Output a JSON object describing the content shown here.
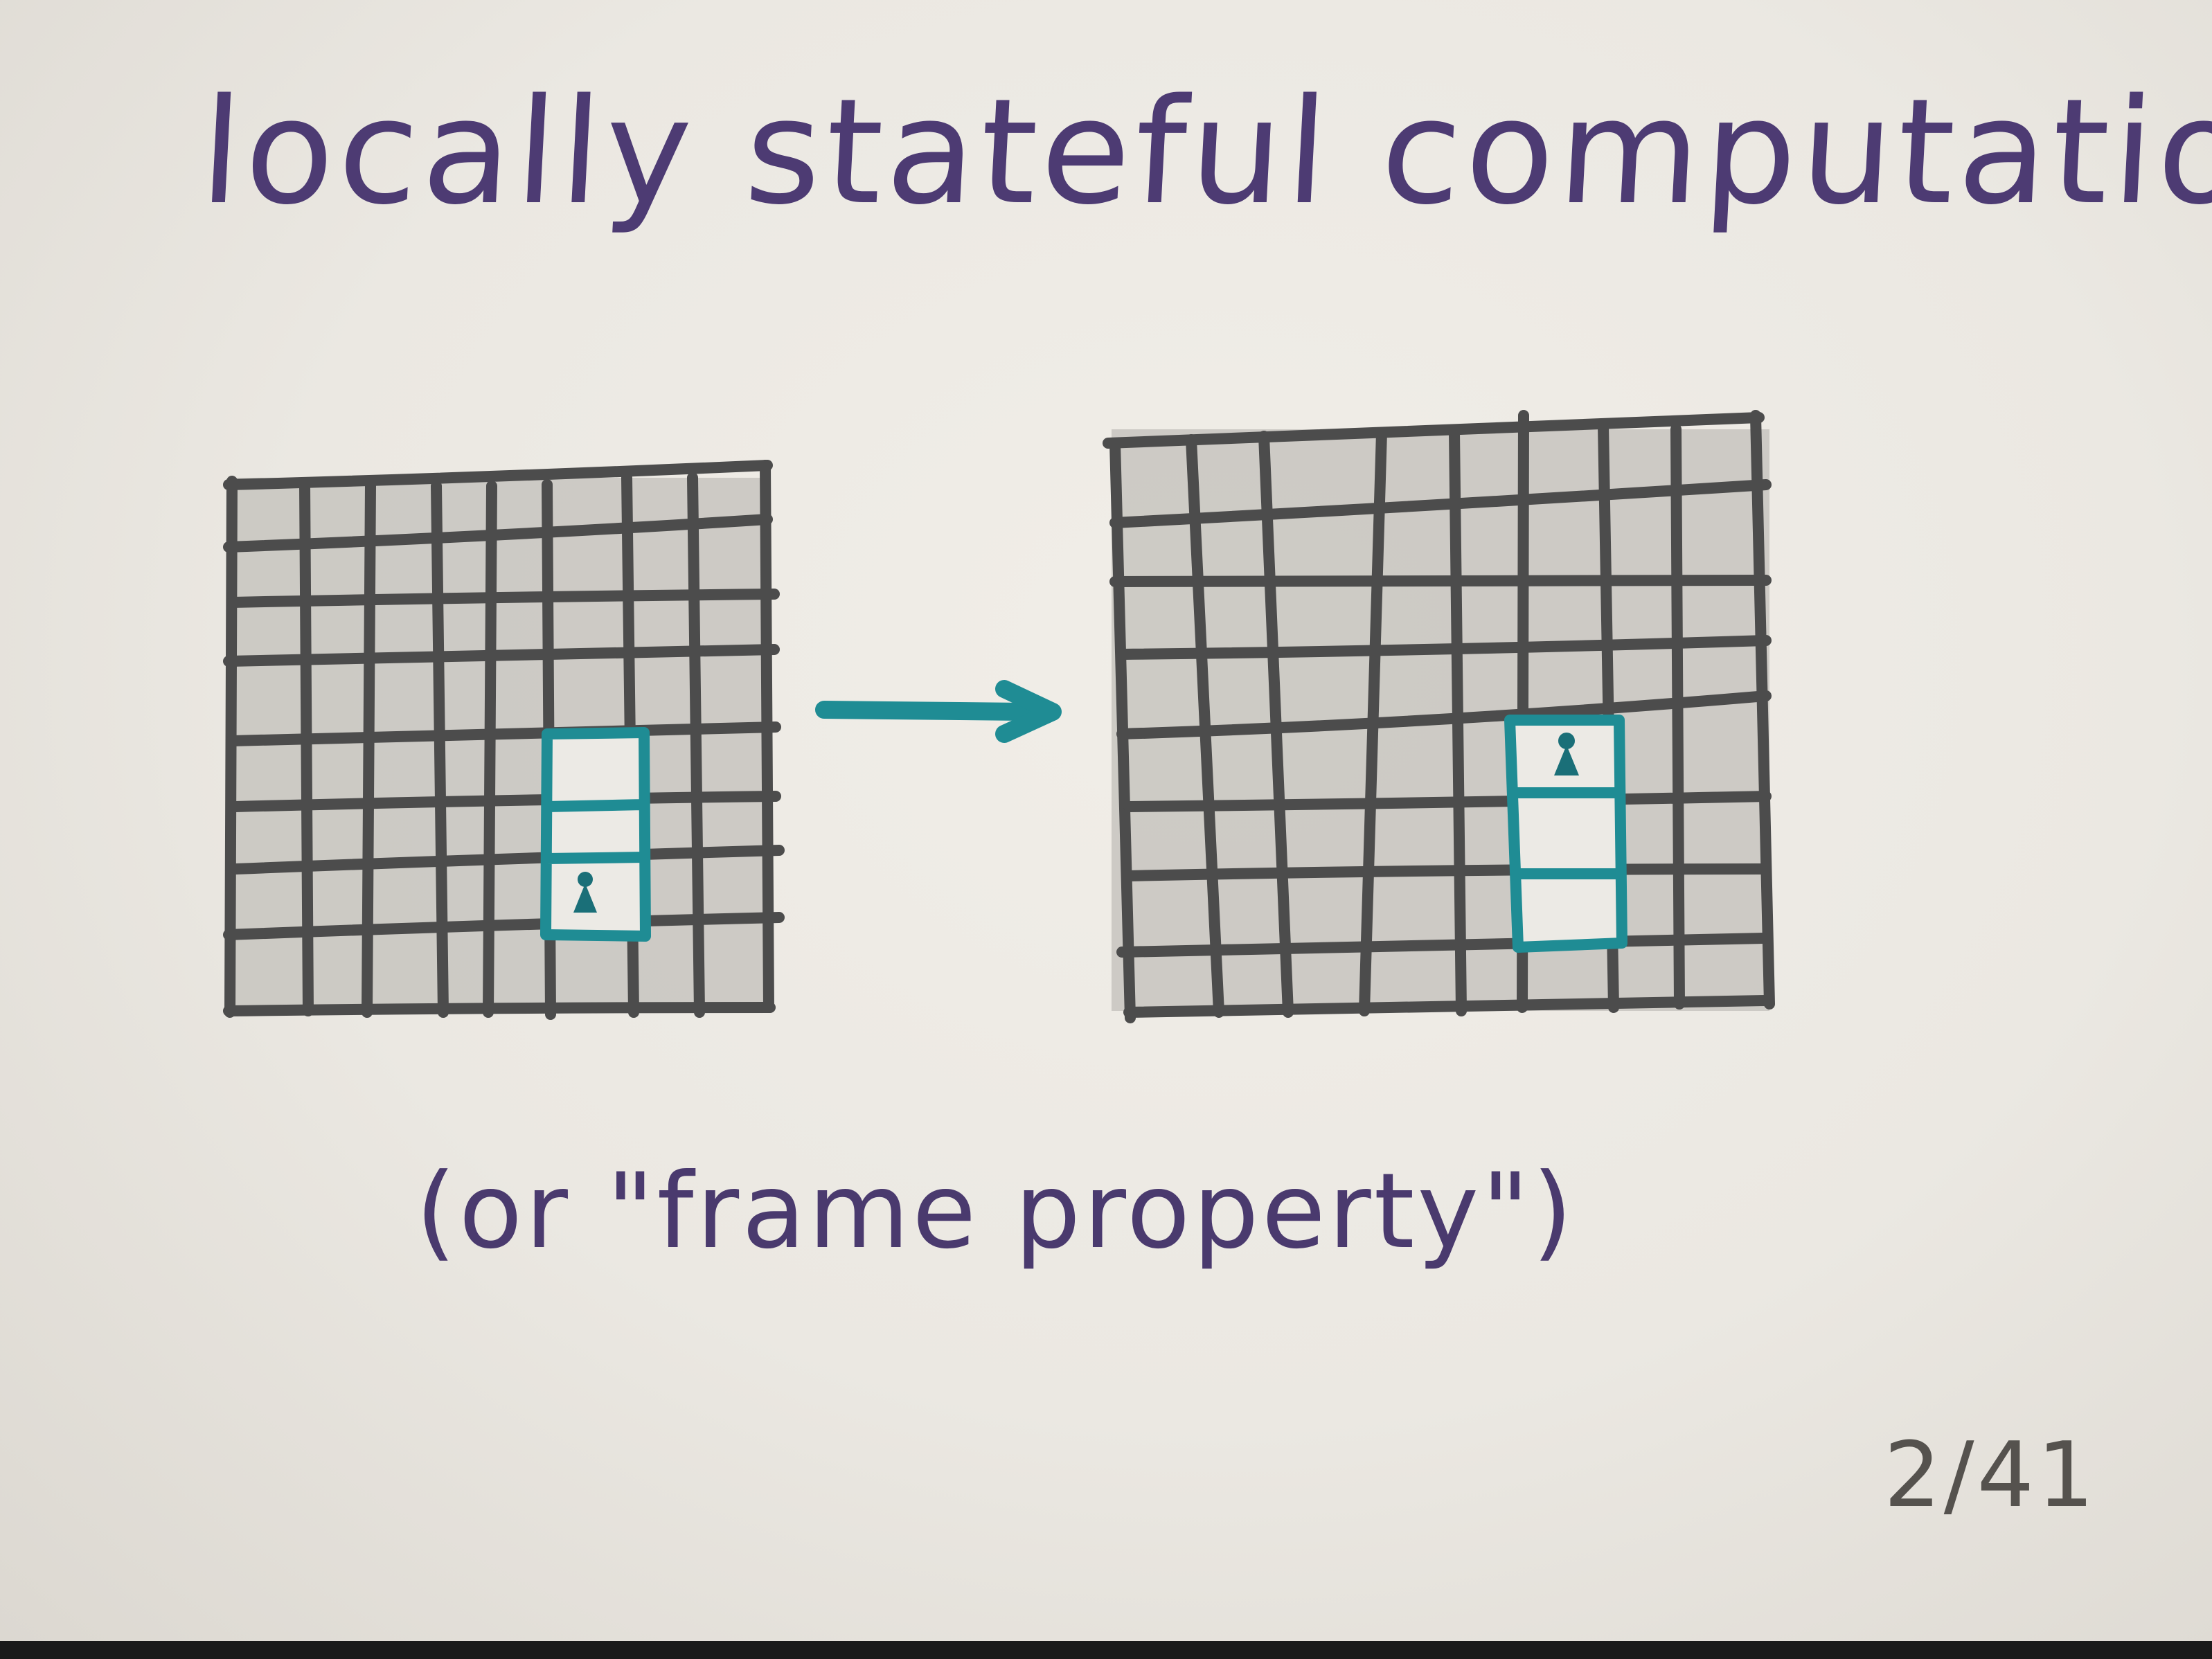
{
  "title": "locally stateful computation",
  "caption": "(or \"frame property\")",
  "page_number": "2/41",
  "colors": {
    "title_ink": "#4d3b73",
    "caption_ink": "#4a3a6e",
    "grid_ink": "#4c4c4c",
    "grid_fill": "#c9c7c1",
    "highlight_ink": "#1f8c94",
    "page_number_ink": "#55524e"
  },
  "icons": {
    "keyhole": "keyhole-icon",
    "arrow": "arrow-right-icon"
  }
}
